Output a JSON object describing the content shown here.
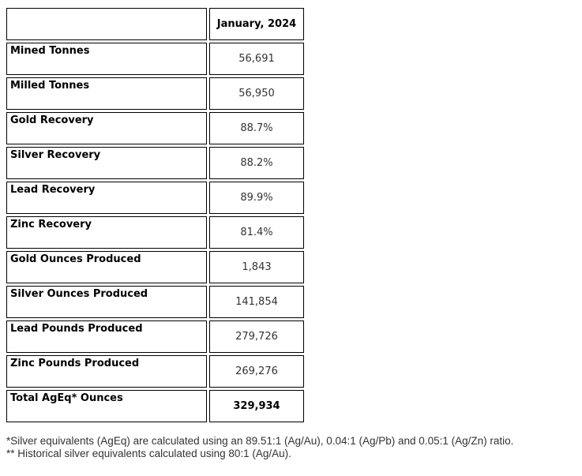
{
  "table": {
    "header": {
      "label": "",
      "value": "January, 2024"
    },
    "rows": [
      {
        "label": "Mined Tonnes",
        "value": "56,691"
      },
      {
        "label": "Milled Tonnes",
        "value": "56,950"
      },
      {
        "label": "Gold Recovery",
        "value": "88.7%"
      },
      {
        "label": "Silver Recovery",
        "value": "88.2%"
      },
      {
        "label": "Lead Recovery",
        "value": "89.9%"
      },
      {
        "label": "Zinc Recovery",
        "value": "81.4%"
      },
      {
        "label": "Gold Ounces Produced",
        "value": "1,843"
      },
      {
        "label": "Silver Ounces Produced",
        "value": "141,854"
      },
      {
        "label": "Lead Pounds Produced",
        "value": "279,726"
      },
      {
        "label": "Zinc Pounds Produced",
        "value": "269,276"
      },
      {
        "label": "Total AgEq* Ounces",
        "value": "329,934"
      }
    ]
  },
  "footnotes": [
    "*Silver equivalents (AgEq) are calculated using an 89.51:1 (Ag/Au), 0.04:1 (Ag/Pb) and 0.05:1 (Ag/Zn) ratio.",
    "** Historical silver equivalents calculated using 80:1 (Ag/Au)."
  ],
  "colors": {
    "border": "#000000",
    "label_text": "#000000",
    "value_text": "#333333",
    "footnote_text": "#333333",
    "background": "#ffffff"
  }
}
